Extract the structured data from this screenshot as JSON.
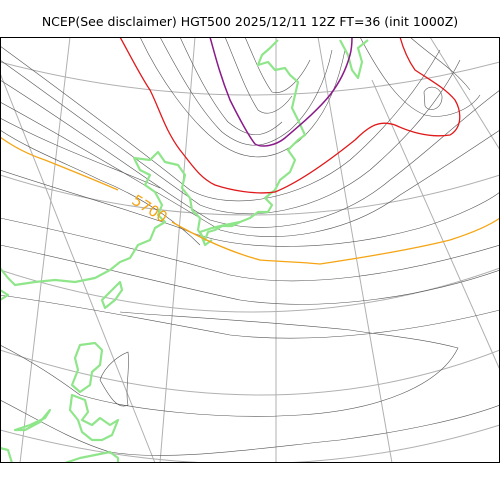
{
  "title": "NCEP(See disclaimer) HGT500 2025/12/11 12Z FT=36 (init 1000Z)",
  "contour_label": "5700",
  "colors": {
    "graticule": "#b0b0b0",
    "isohypse": "#555555",
    "coastline": "#8fe68a",
    "contour_5700": "#f5a514",
    "contour_5400": "#e0191b",
    "contour_5100": "#8a1a8a"
  }
}
